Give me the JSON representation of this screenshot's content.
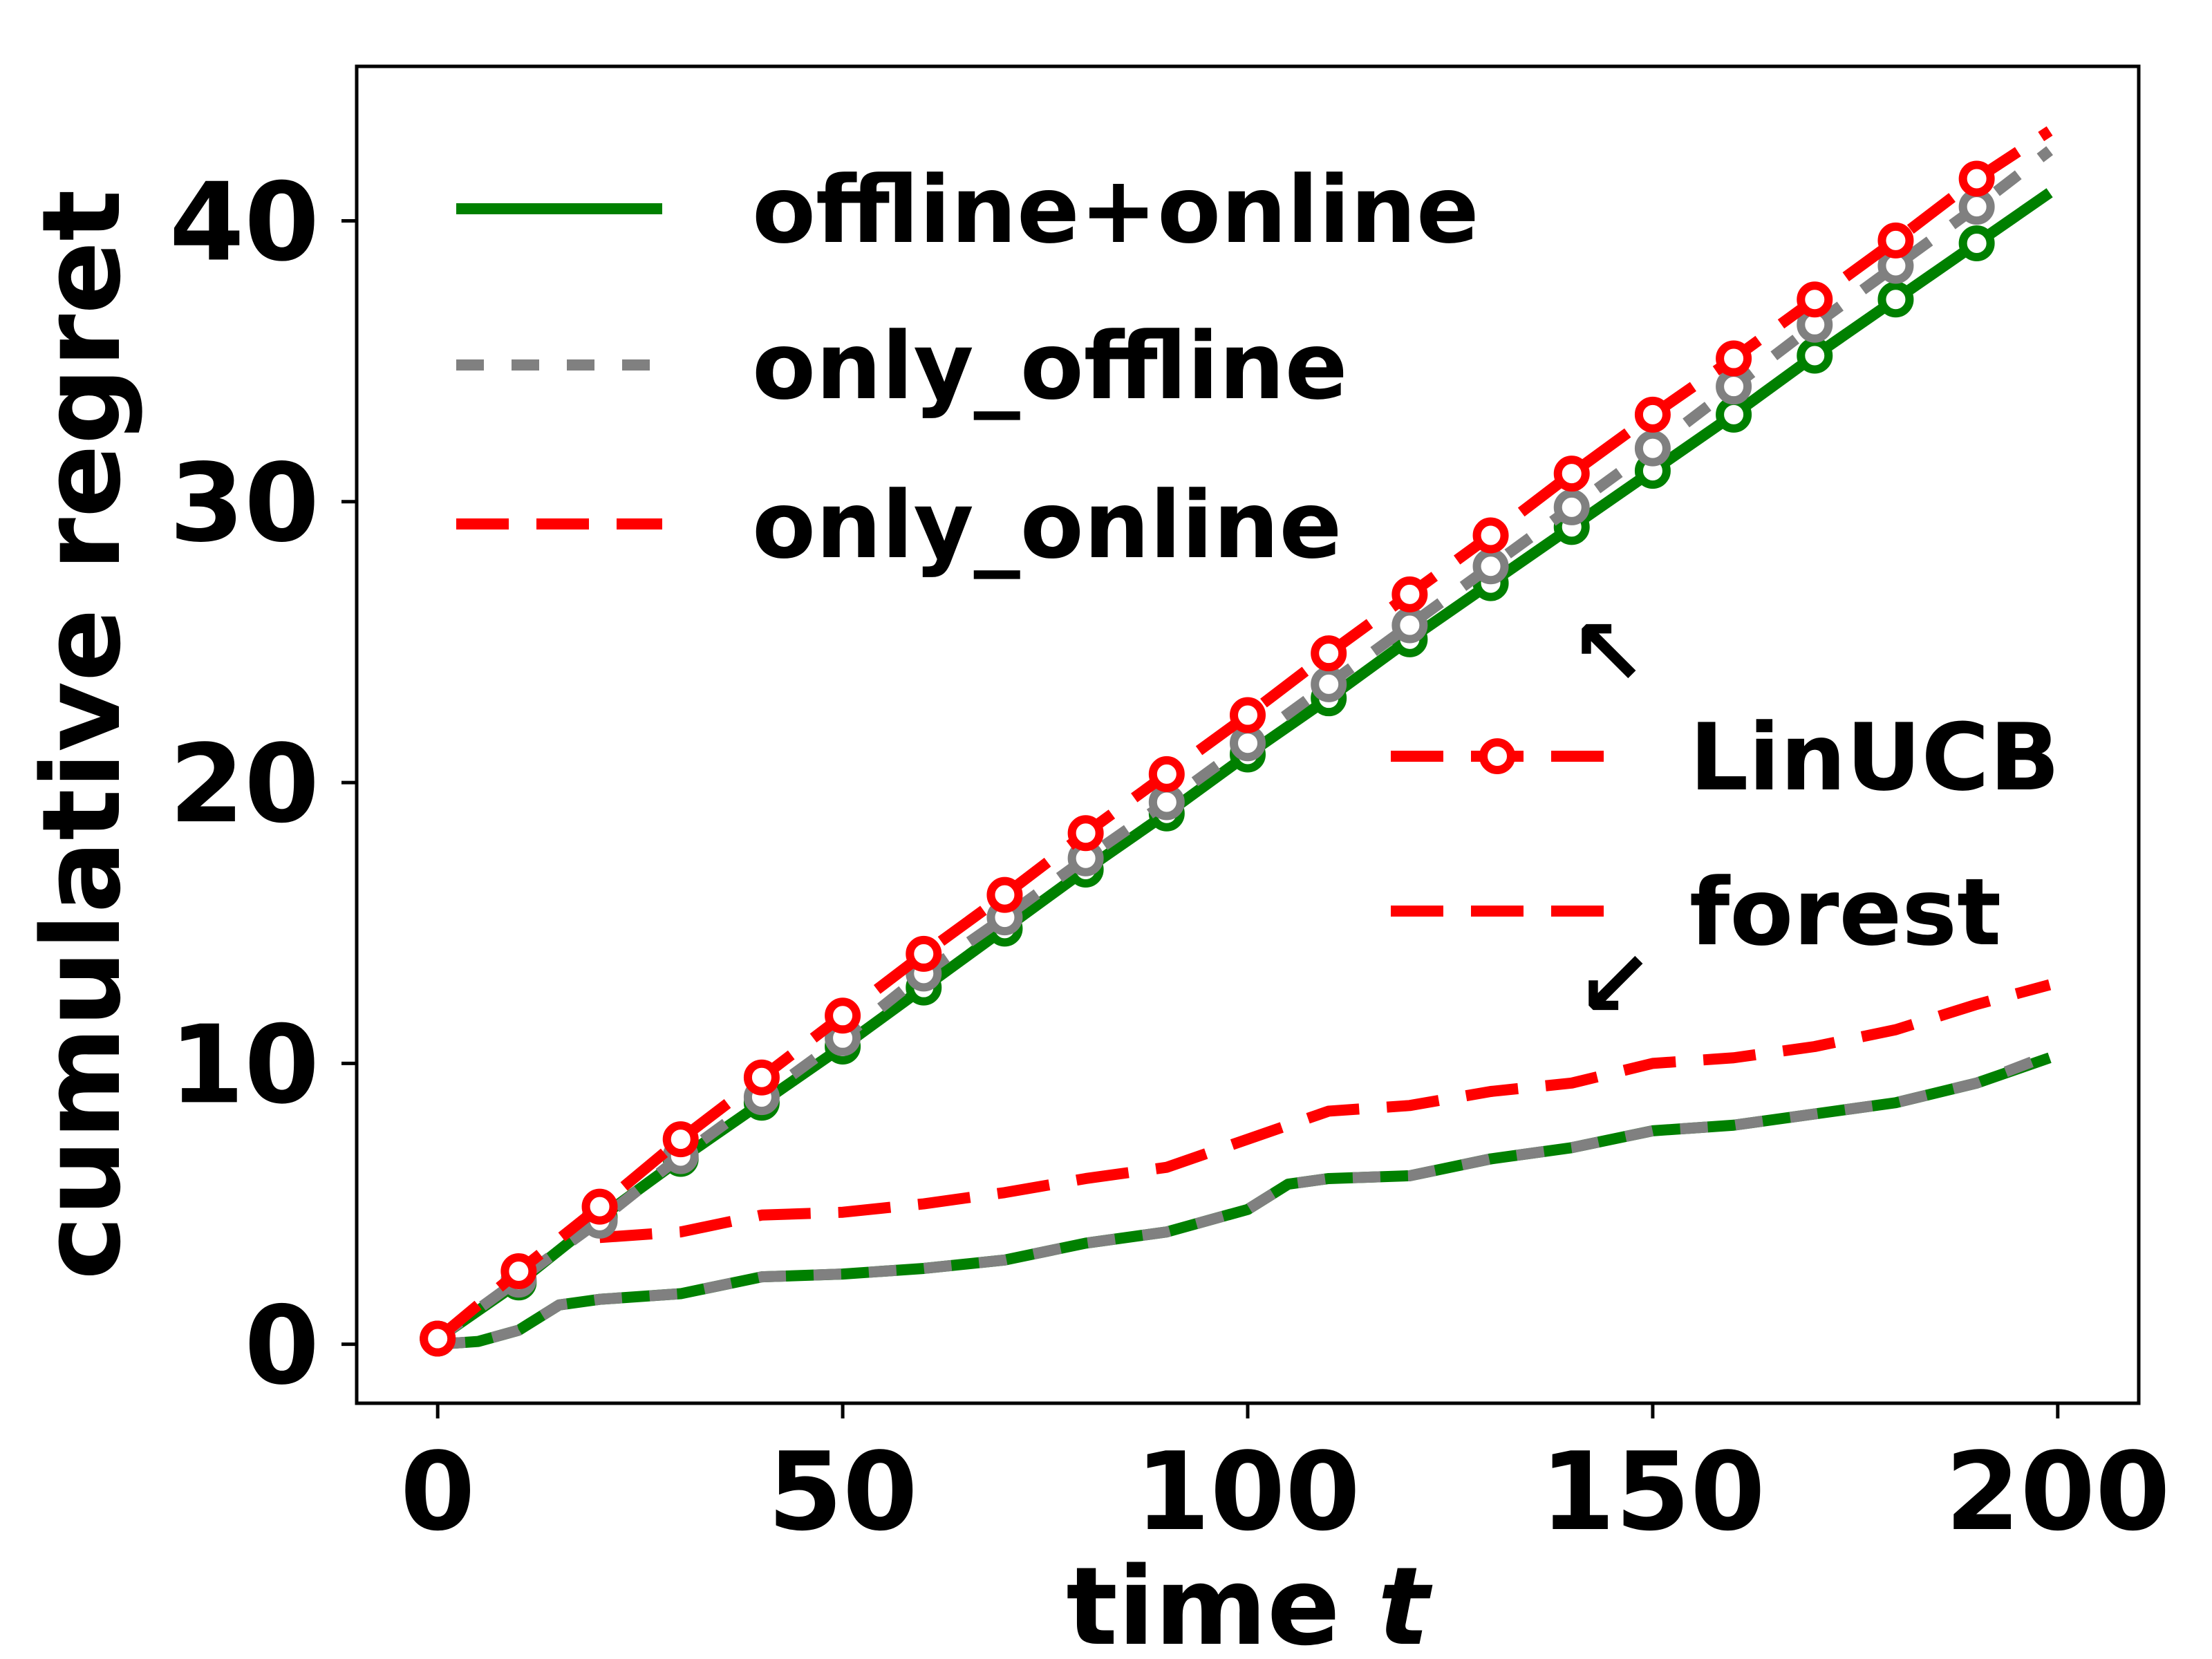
{
  "chart_data": {
    "type": "line",
    "xlabel": "time",
    "xlabel_var": "t",
    "ylabel": "cumulative regret",
    "xlim": [
      -10,
      210
    ],
    "ylim": [
      -2.1,
      45.5
    ],
    "xticks": [
      0,
      50,
      100,
      150,
      200
    ],
    "yticks": [
      0,
      10,
      20,
      30,
      40
    ],
    "grid": false,
    "legend_position": "upper-left",
    "legend": [
      {
        "label": "offline+online",
        "color": "#008000",
        "style": "solid"
      },
      {
        "label": "only_offline",
        "color": "#808080",
        "style": "dotted"
      },
      {
        "label": "only_online",
        "color": "#ff0000",
        "style": "dashed"
      }
    ],
    "method_legend": [
      {
        "label": "LinUCB",
        "color": "#ff0000",
        "style": "dashed-marker"
      },
      {
        "label": "forest",
        "color": "#ff0000",
        "style": "dashed"
      }
    ],
    "annotations": [
      {
        "text": "↖",
        "target": "LinUCB"
      },
      {
        "text": "↙",
        "target": "forest"
      }
    ],
    "series": [
      {
        "name": "offline+online",
        "method": "LinUCB",
        "color": "#008000",
        "style": "solid",
        "markers": true,
        "x": [
          0,
          10,
          20,
          30,
          40,
          50,
          60,
          70,
          80,
          90,
          100,
          110,
          120,
          130,
          140,
          150,
          160,
          170,
          180,
          190,
          199
        ],
        "y": [
          0.2,
          2.2,
          4.5,
          6.6,
          8.6,
          10.6,
          12.7,
          14.8,
          16.9,
          18.9,
          21.0,
          23.0,
          25.1,
          27.1,
          29.1,
          31.1,
          33.1,
          35.2,
          37.2,
          39.2,
          41.0
        ]
      },
      {
        "name": "only_offline",
        "method": "LinUCB",
        "color": "#808080",
        "style": "dotted",
        "markers": true,
        "x": [
          0,
          10,
          20,
          30,
          40,
          50,
          60,
          70,
          80,
          90,
          100,
          110,
          120,
          130,
          140,
          150,
          160,
          170,
          180,
          190,
          199
        ],
        "y": [
          0.2,
          2.3,
          4.4,
          6.7,
          8.8,
          10.9,
          13.2,
          15.2,
          17.3,
          19.3,
          21.4,
          23.5,
          25.6,
          27.7,
          29.8,
          31.9,
          34.1,
          36.3,
          38.4,
          40.5,
          42.5
        ]
      },
      {
        "name": "only_online",
        "method": "LinUCB",
        "color": "#ff0000",
        "style": "dashed",
        "markers": true,
        "x": [
          0,
          10,
          20,
          30,
          40,
          50,
          60,
          70,
          80,
          90,
          100,
          110,
          120,
          130,
          140,
          150,
          160,
          170,
          180,
          190,
          199
        ],
        "y": [
          0.2,
          2.6,
          4.9,
          7.3,
          9.5,
          11.7,
          13.9,
          16.0,
          18.2,
          20.3,
          22.4,
          24.6,
          26.7,
          28.8,
          31.0,
          33.1,
          35.1,
          37.2,
          39.3,
          41.5,
          43.2
        ]
      },
      {
        "name": "only_online",
        "method": "forest",
        "color": "#ff0000",
        "style": "dashed",
        "markers": false,
        "x": [
          20,
          30,
          40,
          50,
          60,
          70,
          80,
          90,
          100,
          110,
          120,
          130,
          140,
          150,
          160,
          170,
          180,
          190,
          199
        ],
        "y": [
          3.8,
          4.0,
          4.6,
          4.7,
          5.0,
          5.4,
          5.9,
          6.3,
          7.3,
          8.3,
          8.5,
          9.0,
          9.3,
          10.0,
          10.2,
          10.6,
          11.2,
          12.1,
          12.8
        ]
      },
      {
        "name": "offline+online",
        "method": "forest",
        "color": "#008000",
        "style": "solid",
        "markers": false,
        "x": [
          0,
          5,
          10,
          15,
          20,
          30,
          40,
          50,
          60,
          70,
          80,
          90,
          100,
          105,
          110,
          120,
          130,
          140,
          150,
          160,
          170,
          180,
          190,
          199
        ],
        "y": [
          0,
          0.1,
          0.5,
          1.4,
          1.6,
          1.8,
          2.4,
          2.5,
          2.7,
          3.0,
          3.6,
          4.0,
          4.8,
          5.7,
          5.9,
          6.0,
          6.6,
          7.0,
          7.6,
          7.8,
          8.2,
          8.6,
          9.3,
          10.2
        ]
      },
      {
        "name": "only_offline",
        "method": "forest",
        "color": "#808080",
        "style": "dotted",
        "markers": false,
        "x": [
          0,
          5,
          10,
          15,
          20,
          30,
          40,
          50,
          60,
          70,
          80,
          90,
          100,
          105,
          110,
          120,
          130,
          140,
          150,
          160,
          170,
          180,
          190,
          199
        ],
        "y": [
          0,
          0.1,
          0.5,
          1.4,
          1.6,
          1.8,
          2.4,
          2.5,
          2.7,
          3.0,
          3.6,
          4.0,
          4.8,
          5.7,
          5.9,
          6.0,
          6.6,
          7.0,
          7.6,
          7.8,
          8.2,
          8.6,
          9.3,
          10.3
        ]
      }
    ]
  }
}
